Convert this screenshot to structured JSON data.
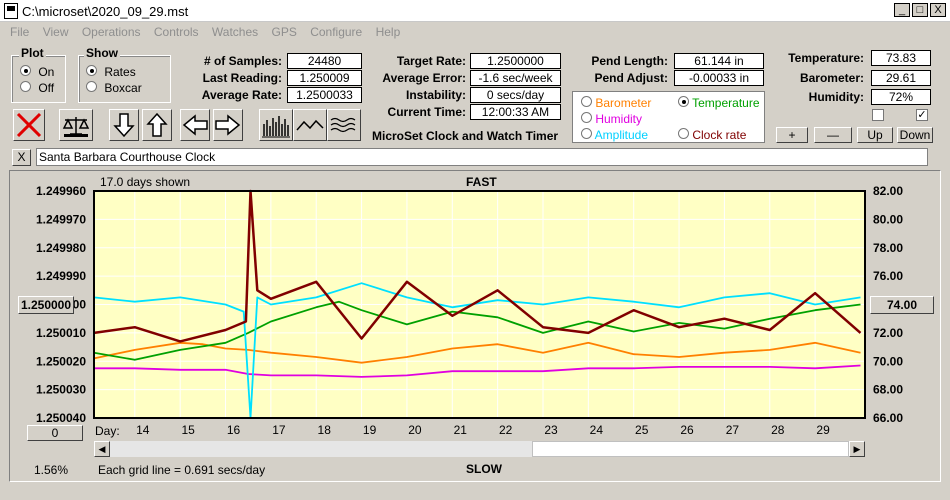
{
  "window": {
    "title": "C:\\microset\\2020_09_29.mst",
    "minimize": "_",
    "maximize": "□",
    "close": "X"
  },
  "menu": [
    "File",
    "View",
    "Operations",
    "Controls",
    "Watches",
    "GPS",
    "Configure",
    "Help"
  ],
  "plot_group": {
    "title": "Plot",
    "on": "On",
    "off": "Off",
    "selected": "On"
  },
  "show_group": {
    "title": "Show",
    "rates": "Rates",
    "boxcar": "Boxcar",
    "selected": "Rates"
  },
  "stats": {
    "samples_label": "# of Samples:",
    "samples": "24480",
    "last_label": "Last Reading:",
    "last": "1.250009",
    "avg_label": "Average Rate:",
    "avg": "1.2500033",
    "target_label": "Target Rate:",
    "target": "1.2500000",
    "avgerr_label": "Average Error:",
    "avgerr": "-1.6 sec/week",
    "instab_label": "Instability:",
    "instab": "0 secs/day",
    "time_label": "Current Time:",
    "time": "12:00:33 AM",
    "pendlen_label": "Pend Length:",
    "pendlen": "61.144 in",
    "pendadj_label": "Pend Adjust:",
    "pendadj": "-0.00033 in",
    "temp_label": "Temperature:",
    "temp": "73.83",
    "baro_label": "Barometer:",
    "baro": "29.61",
    "hum_label": "Humidity:",
    "hum": "72%"
  },
  "app_title": "MicroSet Clock and Watch Timer",
  "overlay_options": [
    {
      "label": "Barometer",
      "color": "#ff8000",
      "selected": false
    },
    {
      "label": "Temperature",
      "color": "#00a000",
      "selected": true
    },
    {
      "label": "Humidity",
      "color": "#e000e0",
      "selected": false
    },
    {
      "label": "Amplitude",
      "color": "#00d0ff",
      "selected": false
    },
    {
      "label": "Clock rate",
      "color": "#800000",
      "selected": false
    }
  ],
  "scale_buttons": {
    "plus": "+",
    "minus": "—",
    "up": "Up",
    "down": "Down"
  },
  "checkboxes": [
    {
      "checked": false
    },
    {
      "checked": true
    }
  ],
  "toolbar_icons": [
    "reset-x-icon",
    "balance-scale-icon",
    "arrow-down-icon",
    "arrow-up-icon",
    "arrow-left-icon",
    "arrow-right-icon",
    "bar-graph-icon",
    "line-graph-icon",
    "wave-graph-icon"
  ],
  "name_close": "X",
  "clock_name": "Santa Barbara Courthouse Clock",
  "chart": {
    "days_shown": "17.0 days shown",
    "top_label": "FAST",
    "bottom_label": "SLOW",
    "grid_note": "Each grid line = 0.691 secs/day",
    "percent": "1.56%",
    "day_label": "Day:",
    "left_button": "1.250000",
    "right_button": "74.00",
    "zero_button": "0"
  },
  "chart_data": {
    "type": "line",
    "x_label": "Day",
    "x_ticks": [
      "14",
      "15",
      "16",
      "17",
      "18",
      "19",
      "20",
      "21",
      "22",
      "23",
      "24",
      "25",
      "26",
      "27",
      "28",
      "29"
    ],
    "xlim": [
      13.1,
      30.1
    ],
    "y_left_ticks": [
      "1.249960",
      "1.249970",
      "1.249980",
      "1.249990",
      "1.250000",
      "1.250010",
      "1.250020",
      "1.250030",
      "1.250040"
    ],
    "ylim_left": [
      1.24996,
      1.25004
    ],
    "y_right_ticks": [
      "82.00",
      "80.00",
      "78.00",
      "76.00",
      "74.00",
      "72.00",
      "70.00",
      "68.00",
      "66.00"
    ],
    "ylim_right": [
      66,
      82
    ],
    "grid": true,
    "series": [
      {
        "name": "Barometer",
        "color": "#ff8000",
        "axis": "right",
        "x": [
          13.1,
          14,
          15,
          15.5,
          16,
          16.5,
          17,
          18,
          19,
          20,
          21,
          22,
          23,
          24,
          25,
          26,
          27,
          28,
          29,
          30
        ],
        "y": [
          70.2,
          70.8,
          71.3,
          71.2,
          70.9,
          70.8,
          70.6,
          70.3,
          69.9,
          70.3,
          70.9,
          71.2,
          70.6,
          71.3,
          70.5,
          70.3,
          70.6,
          70.8,
          71.3,
          70.6
        ]
      },
      {
        "name": "Temperature",
        "color": "#00a000",
        "axis": "right",
        "x": [
          13.1,
          14,
          15,
          16,
          16.5,
          17,
          18,
          18.5,
          19,
          20,
          21,
          22,
          23,
          24,
          25,
          26,
          27,
          28,
          29,
          30
        ],
        "y": [
          70.6,
          70.1,
          70.8,
          71.3,
          72.0,
          72.8,
          73.8,
          74.2,
          73.6,
          72.6,
          73.5,
          73.1,
          72.0,
          72.8,
          72.1,
          72.7,
          72.3,
          73.0,
          73.6,
          74.0
        ]
      },
      {
        "name": "Humidity",
        "color": "#e000e0",
        "axis": "right",
        "x": [
          13.1,
          14,
          15,
          16,
          16.5,
          17,
          18,
          19,
          20,
          21,
          22,
          23,
          24,
          25,
          26,
          27,
          28,
          29,
          30
        ],
        "y": [
          69.5,
          69.5,
          69.4,
          69.4,
          69.1,
          69.0,
          69.0,
          68.9,
          69.0,
          69.3,
          69.3,
          69.3,
          69.5,
          69.5,
          69.6,
          69.6,
          69.6,
          69.5,
          69.7
        ]
      },
      {
        "name": "Amplitude",
        "color": "#00e0ff",
        "axis": "right",
        "x": [
          13.1,
          14,
          15,
          16,
          16.4,
          16.55,
          16.7,
          17,
          18,
          19,
          20,
          21,
          22,
          23,
          24,
          25,
          26,
          27,
          28,
          29,
          30
        ],
        "y": [
          74.5,
          74.2,
          74.5,
          74.0,
          73.5,
          66.0,
          74.5,
          74.0,
          74.5,
          75.5,
          74.5,
          73.8,
          74.3,
          74.0,
          74.5,
          74.2,
          73.8,
          74.5,
          74.8,
          74.0,
          74.5
        ]
      },
      {
        "name": "Clock rate",
        "color": "#800000",
        "axis": "left",
        "x": [
          13.1,
          14,
          15,
          16,
          16.45,
          16.55,
          16.7,
          17,
          18,
          19,
          20,
          21,
          22,
          23,
          24,
          25,
          26,
          27,
          28,
          29,
          30
        ],
        "y": [
          1.25001,
          1.250008,
          1.250013,
          1.250009,
          1.250006,
          1.24996,
          1.249995,
          1.249998,
          1.249992,
          1.250012,
          1.249992,
          1.250004,
          1.249995,
          1.250008,
          1.25001,
          1.250002,
          1.250008,
          1.250005,
          1.250009,
          1.249996,
          1.25001
        ]
      }
    ]
  }
}
